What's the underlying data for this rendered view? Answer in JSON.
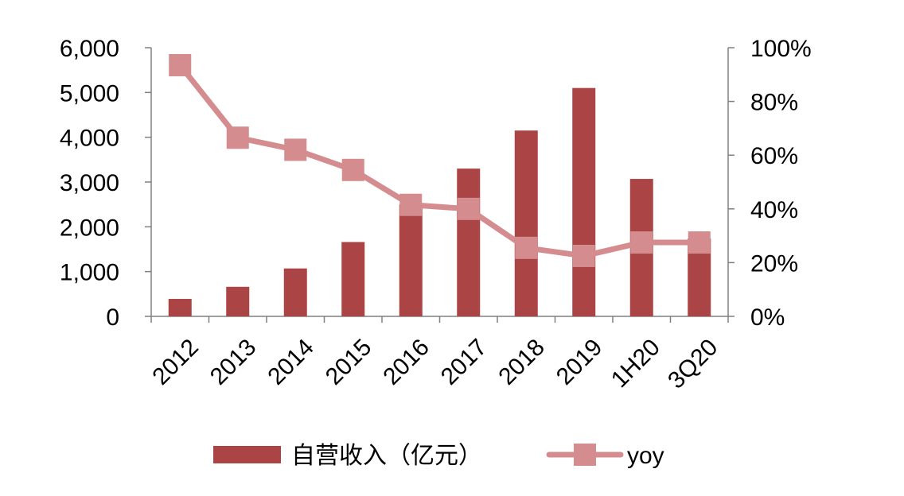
{
  "chart_data": {
    "type": "bar",
    "categories": [
      "2012",
      "2013",
      "2014",
      "2015",
      "2016",
      "2017",
      "2018",
      "2019",
      "1H20",
      "3Q20"
    ],
    "y_left": {
      "ticks": [
        "0",
        "1,000",
        "2,000",
        "3,000",
        "4,000",
        "5,000",
        "6,000"
      ],
      "lim": [
        0,
        6000
      ]
    },
    "y_right": {
      "ticks": [
        "0%",
        "20%",
        "40%",
        "60%",
        "80%",
        "100%"
      ],
      "lim": [
        0,
        100
      ]
    },
    "series": [
      {
        "name": "自营收入（亿元）",
        "kind": "bar",
        "axis": "left",
        "color": "#ab4444",
        "values": [
          390,
          660,
          1070,
          1660,
          2500,
          3300,
          4150,
          5100,
          3070,
          1740
        ]
      },
      {
        "name": "yoy",
        "kind": "line",
        "axis": "right",
        "color": "#d48c8f",
        "values": [
          93.5,
          66.5,
          62,
          54.5,
          41.5,
          40,
          25.5,
          22.5,
          27.5,
          27.5
        ]
      }
    ],
    "legend_position": "bottom",
    "grid": false
  }
}
